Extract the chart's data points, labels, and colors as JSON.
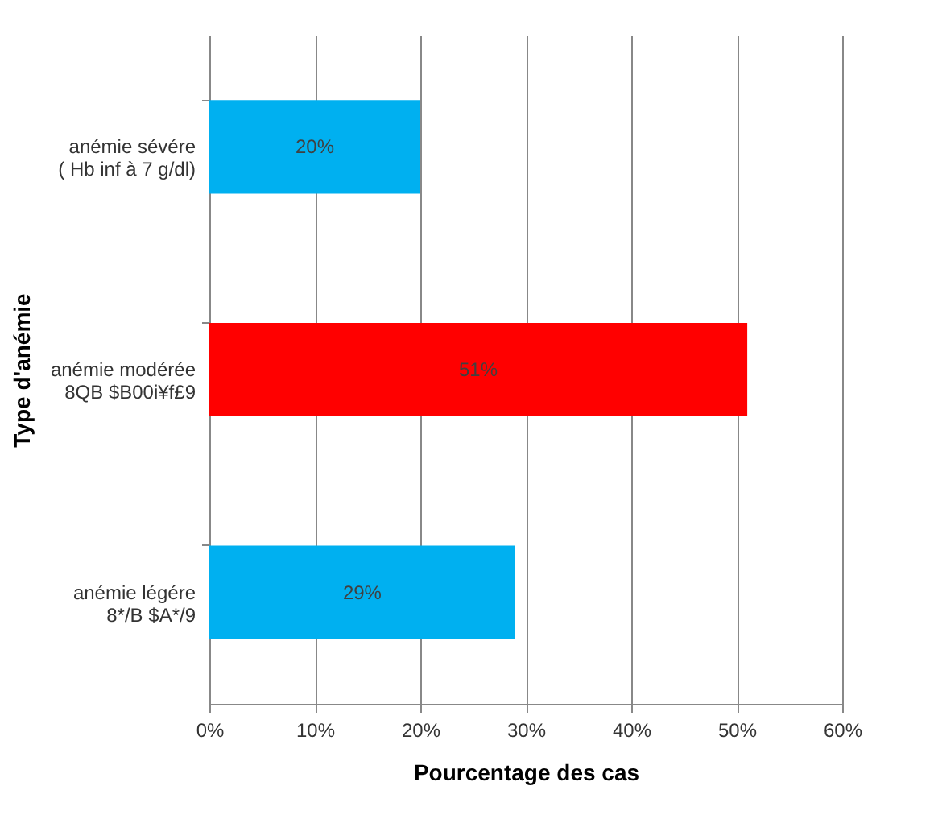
{
  "chart_data": {
    "type": "bar",
    "orientation": "horizontal",
    "categories": [
      "anémie sévére\n( Hb inf à 7 g/dl)",
      "anémie modérée\n8QB $B00i¥f£9",
      "anémie légére\n8*/B $A*/9"
    ],
    "values": [
      20,
      51,
      29
    ],
    "colors": [
      "#00b0f0",
      "#ff0000",
      "#00b0f0"
    ],
    "value_labels": [
      "20%",
      "51%",
      "29%"
    ],
    "xlabel": "Pourcentage des cas",
    "ylabel": "Type d'anémie",
    "xlim": [
      0,
      60
    ],
    "xticks": [
      {
        "value": 0,
        "label": "0%"
      },
      {
        "value": 10,
        "label": "10%"
      },
      {
        "value": 20,
        "label": "20%"
      },
      {
        "value": 30,
        "label": "30%"
      },
      {
        "value": 40,
        "label": "40%"
      },
      {
        "value": 50,
        "label": "50%"
      },
      {
        "value": 60,
        "label": "60%"
      }
    ],
    "grid": "x"
  }
}
